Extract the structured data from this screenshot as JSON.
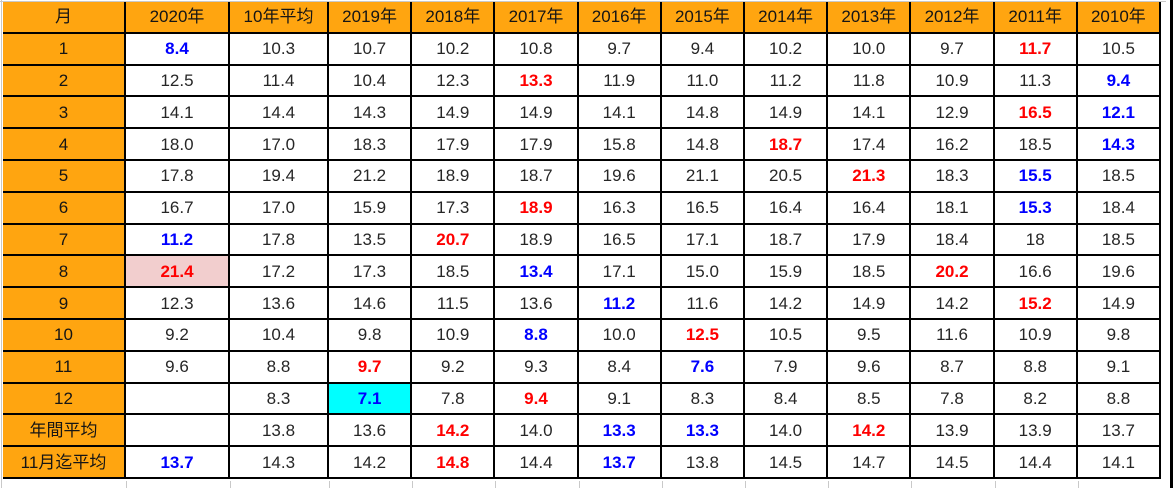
{
  "table": {
    "columns": [
      "月",
      "2020年",
      "10年平均",
      "2019年",
      "2018年",
      "2017年",
      "2016年",
      "2015年",
      "2014年",
      "2013年",
      "2012年",
      "2011年",
      "2010年"
    ],
    "rows": [
      {
        "label": "1",
        "cells": [
          {
            "v": "8.4",
            "s": "b"
          },
          {
            "v": "10.3"
          },
          {
            "v": "10.7"
          },
          {
            "v": "10.2"
          },
          {
            "v": "10.8"
          },
          {
            "v": "9.7"
          },
          {
            "v": "9.4"
          },
          {
            "v": "10.2"
          },
          {
            "v": "10.0"
          },
          {
            "v": "9.7"
          },
          {
            "v": "11.7",
            "s": "r"
          },
          {
            "v": "10.5"
          }
        ]
      },
      {
        "label": "2",
        "cells": [
          {
            "v": "12.5"
          },
          {
            "v": "11.4"
          },
          {
            "v": "10.4"
          },
          {
            "v": "12.3"
          },
          {
            "v": "13.3",
            "s": "r"
          },
          {
            "v": "11.9"
          },
          {
            "v": "11.0"
          },
          {
            "v": "11.2"
          },
          {
            "v": "11.8"
          },
          {
            "v": "10.9"
          },
          {
            "v": "11.3"
          },
          {
            "v": "9.4",
            "s": "b"
          }
        ]
      },
      {
        "label": "3",
        "cells": [
          {
            "v": "14.1"
          },
          {
            "v": "14.4"
          },
          {
            "v": "14.3"
          },
          {
            "v": "14.9"
          },
          {
            "v": "14.9"
          },
          {
            "v": "14.1"
          },
          {
            "v": "14.8"
          },
          {
            "v": "14.9"
          },
          {
            "v": "14.1"
          },
          {
            "v": "12.9"
          },
          {
            "v": "16.5",
            "s": "r"
          },
          {
            "v": "12.1",
            "s": "b"
          }
        ]
      },
      {
        "label": "4",
        "cells": [
          {
            "v": "18.0"
          },
          {
            "v": "17.0"
          },
          {
            "v": "18.3"
          },
          {
            "v": "17.9"
          },
          {
            "v": "17.9"
          },
          {
            "v": "15.8"
          },
          {
            "v": "14.8"
          },
          {
            "v": "18.7",
            "s": "r"
          },
          {
            "v": "17.4"
          },
          {
            "v": "16.2"
          },
          {
            "v": "18.5"
          },
          {
            "v": "14.3",
            "s": "b"
          }
        ]
      },
      {
        "label": "5",
        "cells": [
          {
            "v": "17.8"
          },
          {
            "v": "19.4"
          },
          {
            "v": "21.2"
          },
          {
            "v": "18.9"
          },
          {
            "v": "18.7"
          },
          {
            "v": "19.6"
          },
          {
            "v": "21.1"
          },
          {
            "v": "20.5"
          },
          {
            "v": "21.3",
            "s": "r"
          },
          {
            "v": "18.3"
          },
          {
            "v": "15.5",
            "s": "b"
          },
          {
            "v": "18.5"
          }
        ]
      },
      {
        "label": "6",
        "cells": [
          {
            "v": "16.7"
          },
          {
            "v": "17.0"
          },
          {
            "v": "15.9"
          },
          {
            "v": "17.3"
          },
          {
            "v": "18.9",
            "s": "r"
          },
          {
            "v": "16.3"
          },
          {
            "v": "16.5"
          },
          {
            "v": "16.4"
          },
          {
            "v": "16.4"
          },
          {
            "v": "18.1"
          },
          {
            "v": "15.3",
            "s": "b"
          },
          {
            "v": "18.4"
          }
        ]
      },
      {
        "label": "7",
        "cells": [
          {
            "v": "11.2",
            "s": "b"
          },
          {
            "v": "17.8"
          },
          {
            "v": "13.5"
          },
          {
            "v": "20.7",
            "s": "r"
          },
          {
            "v": "18.9"
          },
          {
            "v": "16.5"
          },
          {
            "v": "17.1"
          },
          {
            "v": "18.7"
          },
          {
            "v": "17.9"
          },
          {
            "v": "18.4"
          },
          {
            "v": "18"
          },
          {
            "v": "18.5"
          }
        ]
      },
      {
        "label": "8",
        "cells": [
          {
            "v": "21.4",
            "s": "r",
            "bg": "pink"
          },
          {
            "v": "17.2"
          },
          {
            "v": "17.3"
          },
          {
            "v": "18.5"
          },
          {
            "v": "13.4",
            "s": "b"
          },
          {
            "v": "17.1"
          },
          {
            "v": "15.0"
          },
          {
            "v": "15.9"
          },
          {
            "v": "18.5"
          },
          {
            "v": "20.2",
            "s": "r"
          },
          {
            "v": "16.6"
          },
          {
            "v": "19.6"
          }
        ]
      },
      {
        "label": "9",
        "cells": [
          {
            "v": "12.3"
          },
          {
            "v": "13.6"
          },
          {
            "v": "14.6"
          },
          {
            "v": "11.5"
          },
          {
            "v": "13.6"
          },
          {
            "v": "11.2",
            "s": "b"
          },
          {
            "v": "11.6"
          },
          {
            "v": "14.2"
          },
          {
            "v": "14.9"
          },
          {
            "v": "14.2"
          },
          {
            "v": "15.2",
            "s": "r"
          },
          {
            "v": "14.9"
          }
        ]
      },
      {
        "label": "10",
        "cells": [
          {
            "v": "9.2"
          },
          {
            "v": "10.4"
          },
          {
            "v": "9.8"
          },
          {
            "v": "10.9"
          },
          {
            "v": "8.8",
            "s": "b"
          },
          {
            "v": "10.0"
          },
          {
            "v": "12.5",
            "s": "r"
          },
          {
            "v": "10.5"
          },
          {
            "v": "9.5"
          },
          {
            "v": "11.6"
          },
          {
            "v": "10.9"
          },
          {
            "v": "9.8"
          }
        ]
      },
      {
        "label": "11",
        "cells": [
          {
            "v": "9.6"
          },
          {
            "v": "8.8"
          },
          {
            "v": "9.7",
            "s": "r"
          },
          {
            "v": "9.2"
          },
          {
            "v": "9.3"
          },
          {
            "v": "8.4"
          },
          {
            "v": "7.6",
            "s": "b"
          },
          {
            "v": "7.9"
          },
          {
            "v": "9.6"
          },
          {
            "v": "8.7"
          },
          {
            "v": "8.8"
          },
          {
            "v": "9.1"
          }
        ]
      },
      {
        "label": "12",
        "cells": [
          {
            "v": ""
          },
          {
            "v": "8.3"
          },
          {
            "v": "7.1",
            "s": "b",
            "bg": "cyan"
          },
          {
            "v": "7.8"
          },
          {
            "v": "9.4",
            "s": "r"
          },
          {
            "v": "9.1"
          },
          {
            "v": "8.3"
          },
          {
            "v": "8.4"
          },
          {
            "v": "8.5"
          },
          {
            "v": "7.8"
          },
          {
            "v": "8.2"
          },
          {
            "v": "8.8"
          }
        ]
      },
      {
        "label": "年間平均",
        "cells": [
          {
            "v": ""
          },
          {
            "v": "13.8"
          },
          {
            "v": "13.6"
          },
          {
            "v": "14.2",
            "s": "r"
          },
          {
            "v": "14.0"
          },
          {
            "v": "13.3",
            "s": "b"
          },
          {
            "v": "13.3",
            "s": "b"
          },
          {
            "v": "14.0"
          },
          {
            "v": "14.2",
            "s": "r"
          },
          {
            "v": "13.9"
          },
          {
            "v": "13.9"
          },
          {
            "v": "13.7"
          }
        ]
      },
      {
        "label": "11月迄平均",
        "cells": [
          {
            "v": "13.7",
            "s": "b"
          },
          {
            "v": "14.3"
          },
          {
            "v": "14.2"
          },
          {
            "v": "14.8",
            "s": "r"
          },
          {
            "v": "14.4"
          },
          {
            "v": "13.7",
            "s": "b"
          },
          {
            "v": "13.8"
          },
          {
            "v": "14.5"
          },
          {
            "v": "14.7"
          },
          {
            "v": "14.5"
          },
          {
            "v": "14.4"
          },
          {
            "v": "14.1"
          }
        ]
      }
    ]
  },
  "colors": {
    "header_bg": "#FFA510",
    "red_value": "#FF0000",
    "blue_value": "#0000FF",
    "pink_bg": "#F2CECE",
    "cyan_bg": "#00FFFF"
  }
}
